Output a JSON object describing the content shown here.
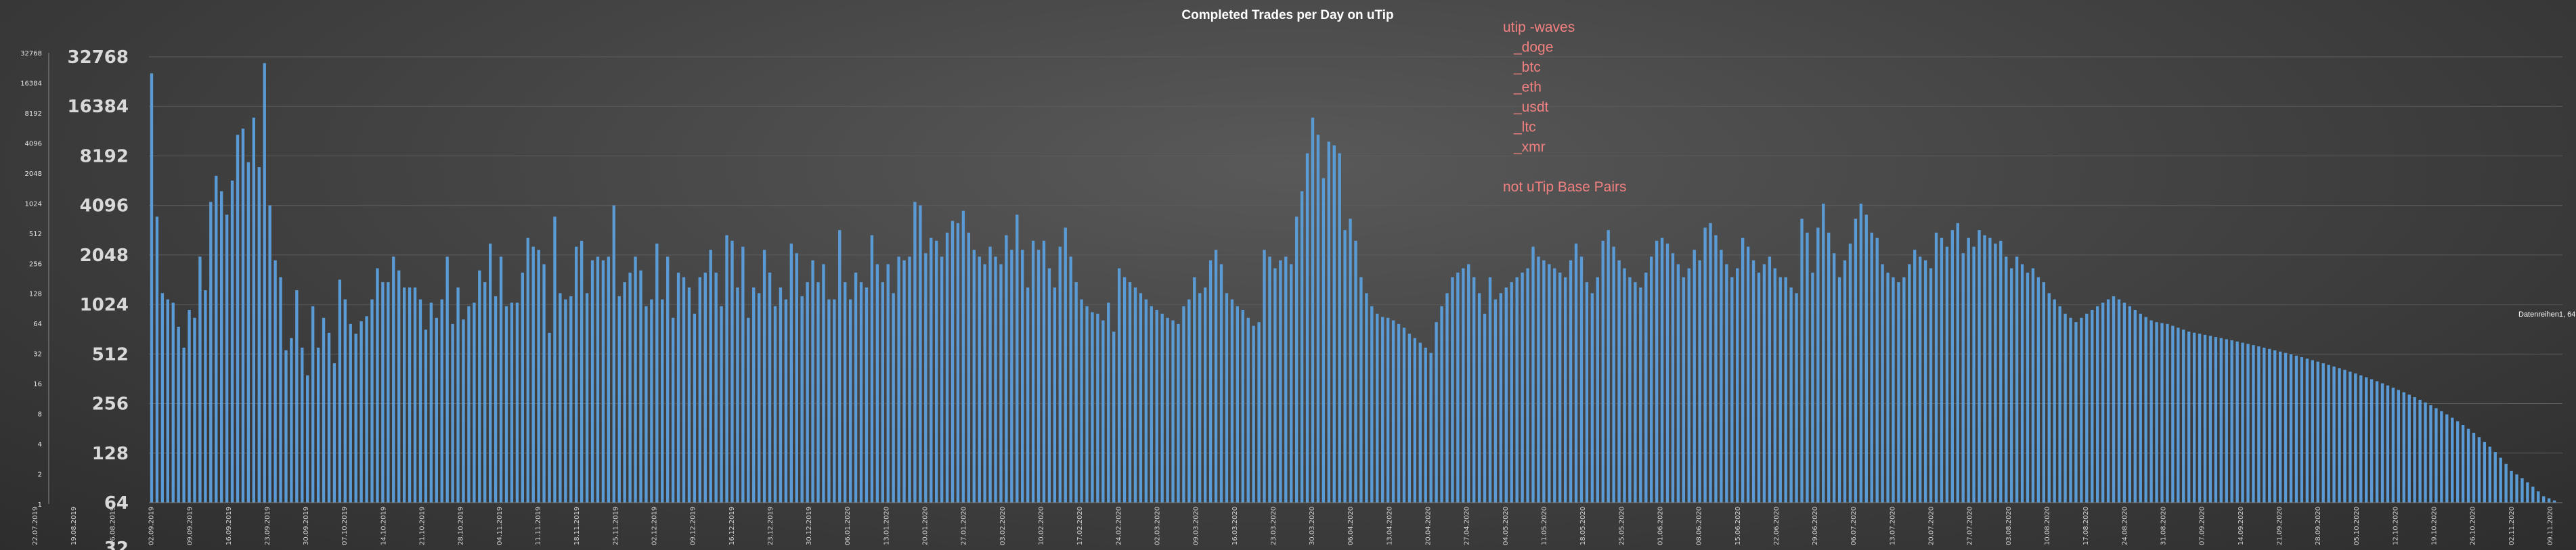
{
  "chart_data": {
    "type": "bar",
    "title": "Completed  Trades  per Day on uTip",
    "yscale": "log2",
    "ylim": [
      1,
      32768
    ],
    "grid": true,
    "legend_position": "top-center",
    "colors": {
      "bar": "#5b9bd5",
      "grid": "#5c5c5c",
      "legend": "#f08080"
    },
    "legend_lines": [
      "utip -waves",
      "_doge",
      "_btc",
      "_eth",
      "_usdt",
      "_ltc",
      "_xmr",
      "",
      "not  uTip Base Pairs"
    ],
    "annotation": "Datenreihen1, 64",
    "left_axis_ticks": [
      "32768",
      "16384",
      "8192",
      "4096",
      "2048",
      "1024",
      "512",
      "256",
      "128",
      "64",
      "32",
      "16",
      "8",
      "4",
      "2",
      "1"
    ],
    "main_axis_ticks": [
      "32768",
      "16384",
      "8192",
      "4096",
      "2048",
      "1024",
      "512",
      "256",
      "128",
      "64",
      "32"
    ],
    "x_tick_labels": [
      "22.07.2019",
      "19.08.2019",
      "26.08.2019",
      "02.09.2019",
      "09.09.2019",
      "16.09.2019",
      "23.09.2019",
      "30.09.2019",
      "07.10.2019",
      "14.10.2019",
      "21.10.2019",
      "28.10.2019",
      "04.11.2019",
      "11.11.2019",
      "18.11.2019",
      "25.11.2019",
      "02.12.2019",
      "09.12.2019",
      "16.12.2019",
      "23.12.2019",
      "30.12.2019",
      "06.01.2020",
      "13.01.2020",
      "20.01.2020",
      "27.01.2020",
      "03.02.2020",
      "10.02.2020",
      "17.02.2020",
      "24.02.2020",
      "02.03.2020",
      "09.03.2020",
      "16.03.2020",
      "23.03.2020",
      "30.03.2020",
      "06.04.2020",
      "13.04.2020",
      "20.04.2020",
      "27.04.2020",
      "04.05.2020",
      "11.05.2020",
      "18.05.2020",
      "25.05.2020",
      "01.06.2020",
      "08.06.2020",
      "15.06.2020",
      "22.06.2020",
      "29.06.2020",
      "06.07.2020",
      "13.07.2020",
      "20.07.2020",
      "27.07.2020",
      "03.08.2020",
      "10.08.2020",
      "17.08.2020",
      "24.08.2020",
      "31.08.2020",
      "07.09.2020",
      "14.09.2020",
      "21.09.2020",
      "28.09.2020",
      "05.10.2020",
      "12.10.2020",
      "19.10.2020",
      "26.10.2020",
      "02.11.2020",
      "09.11.2020"
    ],
    "values": [
      26000,
      3500,
      1200,
      1100,
      1050,
      750,
      560,
      950,
      850,
      2000,
      1250,
      4300,
      6200,
      5000,
      3600,
      5800,
      11000,
      12000,
      7500,
      14000,
      7000,
      30000,
      4100,
      1900,
      1500,
      540,
      640,
      1250,
      560,
      380,
      1000,
      560,
      850,
      690,
      450,
      1450,
      1100,
      780,
      680,
      810,
      870,
      1100,
      1700,
      1400,
      1400,
      2000,
      1650,
      1300,
      1300,
      1300,
      1100,
      720,
      1050,
      850,
      1100,
      2000,
      780,
      1300,
      830,
      1000,
      1050,
      1650,
      1400,
      2400,
      1150,
      2000,
      1000,
      1050,
      1050,
      1600,
      2600,
      2300,
      2200,
      1800,
      690,
      3500,
      1200,
      1100,
      1150,
      2300,
      2500,
      1200,
      1900,
      2000,
      1900,
      2000,
      4100,
      1150,
      1400,
      1600,
      2000,
      1650,
      1000,
      1100,
      2400,
      1100,
      2000,
      850,
      1600,
      1500,
      1300,
      900,
      1500,
      1600,
      2200,
      1600,
      1000,
      2700,
      2500,
      1300,
      2300,
      850,
      1300,
      1200,
      2200,
      1600,
      1000,
      1300,
      1100,
      2400,
      2100,
      1150,
      1400,
      1900,
      1400,
      1800,
      1100,
      1100,
      2900,
      1400,
      1100,
      1600,
      1400,
      1300,
      2700,
      1800,
      1400,
      1800,
      1200,
      2000,
      1900,
      2000,
      4300,
      4100,
      2100,
      2600,
      2500,
      2000,
      2800,
      3300,
      3200,
      3800,
      2800,
      2200,
      2000,
      1800,
      2300,
      2000,
      1800,
      2700,
      2200,
      3600,
      2200,
      1300,
      2500,
      2200,
      2500,
      1700,
      1300,
      2300,
      3000,
      2000,
      1400,
      1100,
      1000,
      920,
      900,
      820,
      1050,
      700,
      1700,
      1500,
      1400,
      1300,
      1200,
      1100,
      1000,
      950,
      900,
      850,
      820,
      780,
      1000,
      1100,
      1500,
      1200,
      1300,
      1900,
      2200,
      1800,
      1200,
      1100,
      1000,
      950,
      850,
      760,
      800,
      2200,
      2000,
      1700,
      1900,
      2000,
      1800,
      3500,
      5000,
      8500,
      14000,
      11000,
      6000,
      10000,
      9500,
      8500,
      2900,
      3400,
      2500,
      1500,
      1200,
      1000,
      900,
      860,
      850,
      820,
      780,
      740,
      680,
      640,
      600,
      560,
      520,
      800,
      1000,
      1200,
      1500,
      1600,
      1700,
      1800,
      1500,
      1200,
      900,
      1500,
      1100,
      1200,
      1300,
      1400,
      1500,
      1600,
      1700,
      2300,
      2000,
      1900,
      1800,
      1700,
      1600,
      1500,
      1900,
      2400,
      2000,
      1400,
      1200,
      1500,
      2500,
      2900,
      2300,
      1900,
      1700,
      1500,
      1400,
      1300,
      1600,
      2000,
      2500,
      2600,
      2400,
      2100,
      1800,
      1500,
      1700,
      2200,
      1900,
      3000,
      3200,
      2700,
      2200,
      1800,
      1500,
      1700,
      2600,
      2300,
      1900,
      1600,
      1800,
      2000,
      1700,
      1500,
      1500,
      1300,
      1200,
      3400,
      2800,
      1600,
      3000,
      4200,
      2800,
      2100,
      1500,
      1900,
      2400,
      3400,
      4200,
      3600,
      2800,
      2600,
      1800,
      1600,
      1500,
      1400,
      1500,
      1800,
      2200,
      2000,
      1900,
      1700,
      2800,
      2600,
      2300,
      2900,
      3200,
      2100,
      2600,
      2300,
      2900,
      2700,
      2600,
      2400,
      2500,
      2000,
      1700,
      2000,
      1800,
      1600,
      1700,
      1500,
      1400,
      1200,
      1100,
      1000,
      900,
      850,
      800,
      850,
      900,
      950,
      1000,
      1050,
      1100,
      1150,
      1100,
      1050,
      1000,
      950,
      900,
      860,
      820,
      800,
      790,
      780,
      760,
      740,
      720,
      700,
      690,
      680,
      670,
      660,
      650,
      640,
      630,
      620,
      610,
      600,
      590,
      580,
      570,
      560,
      550,
      540,
      530,
      520,
      510,
      500,
      490,
      480,
      470,
      460,
      450,
      440,
      430,
      420,
      410,
      400,
      390,
      380,
      370,
      360,
      350,
      340,
      330,
      320,
      310,
      300,
      290,
      280,
      270,
      260,
      250,
      240,
      230,
      220,
      210,
      200,
      190,
      180,
      170,
      160,
      150,
      140,
      130,
      120,
      110,
      100,
      95,
      90,
      85,
      80,
      75,
      70,
      68,
      66,
      64
    ]
  }
}
